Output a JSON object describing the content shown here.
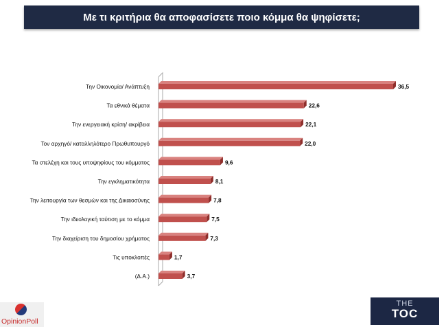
{
  "title": "Με τι κριτήρια θα αποφασίσετε ποιο κόμμα θα ψηφίσετε;",
  "chart_data": {
    "type": "bar",
    "orientation": "horizontal",
    "categories": [
      "Την Οικονομία/ Ανάπτυξη",
      "Τα εθνικά θέματα",
      "Την ενεργειακή κρίση/ ακρίβεια",
      "Τον αρχηγό/ καταλληλότερο Πρωθυπουργό",
      "Τα στελέχη και τους υποψηφίους του κόμματος",
      "Την εγκληματικότητα",
      "Την λειτουργία των θεσμών και της Δικαιοσύνης",
      "Την ιδεολογική ταύτιση με το κόμμα",
      "Την διαχείριση του δημοσίου χρήματος",
      "Τις υποκλοπές",
      "(Δ.Α.)"
    ],
    "values": [
      36.5,
      22.6,
      22.1,
      22.0,
      9.6,
      8.1,
      7.8,
      7.5,
      7.3,
      1.7,
      3.7
    ],
    "value_labels": [
      "36,5",
      "22,6",
      "22,1",
      "22,0",
      "9,6",
      "8,1",
      "7,8",
      "7,5",
      "7,3",
      "1,7",
      "3,7"
    ],
    "bar_color": "#c0504d",
    "xlim": [
      0,
      36.5
    ]
  },
  "logos": {
    "left": "OpinionPoll",
    "right_top": "THE",
    "right_main": "TOC"
  }
}
